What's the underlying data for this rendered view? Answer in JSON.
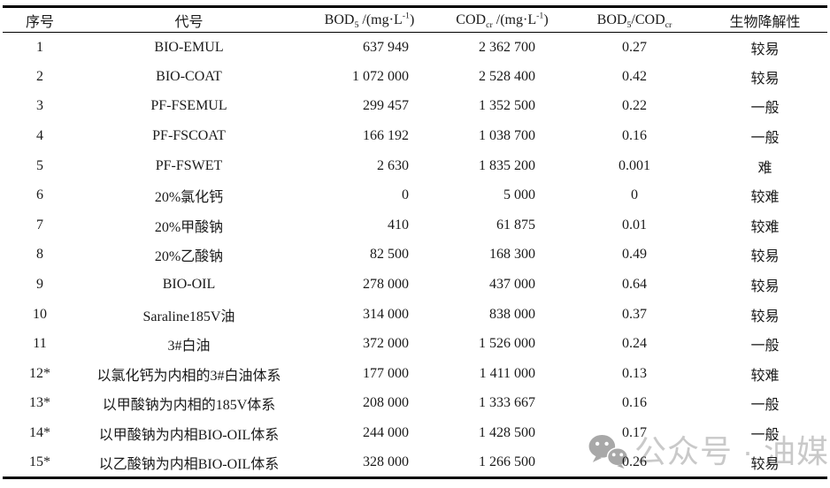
{
  "table": {
    "columns": [
      {
        "label": "序号"
      },
      {
        "label": "代号"
      },
      {
        "label": "BOD~5~ /(mg·L^-1^)"
      },
      {
        "label": "COD~cr~ /(mg·L^-1^)"
      },
      {
        "label": "BOD~5~/COD~cr~"
      },
      {
        "label": "生物降解性"
      }
    ],
    "rows": [
      {
        "no": "1",
        "code": "BIO-EMUL",
        "bod5": "637 949",
        "cod": "2 362 700",
        "ratio": "0.27",
        "bio": "较易"
      },
      {
        "no": "2",
        "code": "BIO-COAT",
        "bod5": "1 072 000",
        "cod": "2 528 400",
        "ratio": "0.42",
        "bio": "较易"
      },
      {
        "no": "3",
        "code": "PF-FSEMUL",
        "bod5": "299 457",
        "cod": "1 352 500",
        "ratio": "0.22",
        "bio": "一般"
      },
      {
        "no": "4",
        "code": "PF-FSCOAT",
        "bod5": "166 192",
        "cod": "1 038 700",
        "ratio": "0.16",
        "bio": "一般"
      },
      {
        "no": "5",
        "code": "PF-FSWET",
        "bod5": "2 630",
        "cod": "1 835 200",
        "ratio": "0.001",
        "bio": "难"
      },
      {
        "no": "6",
        "code": "20%氯化钙",
        "bod5": "0",
        "cod": "5 000",
        "ratio": "0",
        "bio": "较难"
      },
      {
        "no": "7",
        "code": "20%甲酸钠",
        "bod5": "410",
        "cod": "61 875",
        "ratio": "0.01",
        "bio": "较难"
      },
      {
        "no": "8",
        "code": "20%乙酸钠",
        "bod5": "82 500",
        "cod": "168 300",
        "ratio": "0.49",
        "bio": "较易"
      },
      {
        "no": "9",
        "code": "BIO-OIL",
        "bod5": "278 000",
        "cod": "437 000",
        "ratio": "0.64",
        "bio": "较易"
      },
      {
        "no": "10",
        "code": "Saraline185V油",
        "bod5": "314 000",
        "cod": "838 000",
        "ratio": "0.37",
        "bio": "较易"
      },
      {
        "no": "11",
        "code": "3#白油",
        "bod5": "372 000",
        "cod": "1 526 000",
        "ratio": "0.24",
        "bio": "一般"
      },
      {
        "no": "12*",
        "code": "以氯化钙为内相的3#白油体系",
        "bod5": "177 000",
        "cod": "1 411 000",
        "ratio": "0.13",
        "bio": "较难"
      },
      {
        "no": "13*",
        "code": "以甲酸钠为内相的185V体系",
        "bod5": "208 000",
        "cod": "1 333 667",
        "ratio": "0.16",
        "bio": "一般"
      },
      {
        "no": "14*",
        "code": "以甲酸钠为内相BIO-OIL体系",
        "bod5": "244 000",
        "cod": "1 428 500",
        "ratio": "0.17",
        "bio": "一般"
      },
      {
        "no": "15*",
        "code": "以乙酸钠为内相BIO-OIL体系",
        "bod5": "328 000",
        "cod": "1 266 500",
        "ratio": "0.26",
        "bio": "较易"
      }
    ]
  },
  "watermark": {
    "icon": "wechat-icon",
    "text": "公众号 · 油媒方"
  },
  "colors": {
    "background": "#ffffff",
    "text": "#1a1a1a",
    "rule": "#000000",
    "watermark_icon": "#a8a8a8",
    "watermark_text": "#c9c9c9"
  }
}
